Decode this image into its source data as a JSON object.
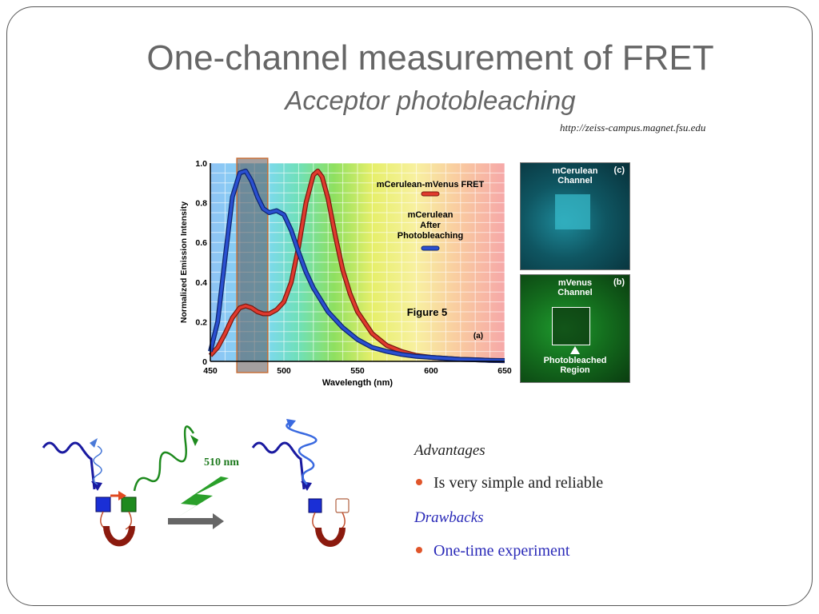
{
  "slide": {
    "title": "One-channel measurement of FRET",
    "subtitle": "Acceptor photobleaching",
    "source": "http://zeiss-campus.magnet.fsu.edu"
  },
  "chart_data": {
    "type": "line",
    "title": "",
    "xlabel": "Wavelength (nm)",
    "ylabel": "Normalized Emission Intensity",
    "xlim": [
      450,
      650
    ],
    "ylim": [
      0,
      1.0
    ],
    "x_ticks": [
      "450",
      "500",
      "550",
      "600",
      "650"
    ],
    "y_ticks": [
      "0",
      "0.2",
      "0.4",
      "0.6",
      "0.8",
      "1.0"
    ],
    "grid": true,
    "legend_placement": "top-right",
    "annotations": [
      "Figure 5",
      "(a)"
    ],
    "highlight_band": [
      468,
      489
    ],
    "series": [
      {
        "name": "mCerulean-mVenus FRET",
        "color": "#e03a2e",
        "x": [
          450,
          455,
          460,
          465,
          470,
          474,
          478,
          482,
          486,
          490,
          495,
          500,
          505,
          510,
          515,
          520,
          523,
          526,
          530,
          535,
          540,
          545,
          550,
          560,
          570,
          580,
          590,
          600,
          610,
          620,
          630,
          640,
          650
        ],
        "y": [
          0.03,
          0.07,
          0.14,
          0.22,
          0.27,
          0.28,
          0.27,
          0.25,
          0.24,
          0.24,
          0.26,
          0.3,
          0.4,
          0.58,
          0.8,
          0.94,
          0.96,
          0.93,
          0.82,
          0.63,
          0.46,
          0.34,
          0.25,
          0.14,
          0.08,
          0.05,
          0.03,
          0.02,
          0.015,
          0.01,
          0.008,
          0.005,
          0.003
        ]
      },
      {
        "name": "mCerulean After Photobleaching",
        "color": "#2a4fd0",
        "x": [
          450,
          455,
          460,
          465,
          470,
          474,
          478,
          482,
          486,
          490,
          495,
          500,
          505,
          510,
          515,
          520,
          525,
          530,
          540,
          550,
          560,
          570,
          580,
          590,
          600,
          610,
          620,
          630,
          640,
          650
        ],
        "y": [
          0.05,
          0.2,
          0.52,
          0.83,
          0.95,
          0.96,
          0.91,
          0.83,
          0.77,
          0.75,
          0.76,
          0.74,
          0.66,
          0.55,
          0.45,
          0.37,
          0.31,
          0.25,
          0.17,
          0.11,
          0.07,
          0.05,
          0.035,
          0.025,
          0.02,
          0.015,
          0.01,
          0.008,
          0.005,
          0.004
        ]
      }
    ]
  },
  "legend": {
    "fret_label": "mCerulean-mVenus FRET",
    "after_label": "mCerulean\nAfter\nPhotobleaching"
  },
  "panels": {
    "c": {
      "title": "mCerulean\nChannel",
      "tag": "(c)"
    },
    "b": {
      "title": "mVenus\nChannel",
      "tag": "(b)",
      "region_label": "Photobleached\nRegion"
    }
  },
  "diagram": {
    "wavelength_label": "510 nm",
    "colors": {
      "donor": "#1a2fd6",
      "acceptor": "#1e8a1e",
      "linker": "#8b1a0e",
      "bolt": "#2aa02a",
      "arrow": "#666666"
    }
  },
  "bullets": {
    "advantages_head": "Advantages",
    "advantage_item": "Is very simple and reliable",
    "drawbacks_head": "Drawbacks",
    "drawback_item": "One-time experiment"
  }
}
